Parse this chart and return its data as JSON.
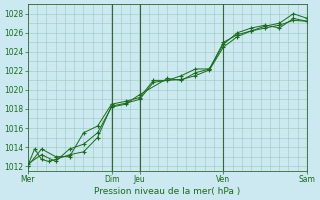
{
  "title": "",
  "xlabel": "Pression niveau de la mer( hPa )",
  "ylabel": "",
  "bg_color": "#cce8f0",
  "grid_color": "#99ccbb",
  "line_color": "#1a6b1a",
  "marker_color": "#1a6b1a",
  "ylim": [
    1011.5,
    1029.0
  ],
  "yticks": [
    1012,
    1014,
    1016,
    1018,
    1020,
    1022,
    1024,
    1026,
    1028
  ],
  "xtick_labels": [
    "Mer",
    "Dim",
    "Jeu",
    "Ven",
    "Sam"
  ],
  "xtick_positions": [
    0.0,
    3.0,
    4.0,
    7.0,
    10.0
  ],
  "vline_positions": [
    3.0,
    4.0,
    7.0,
    10.0
  ],
  "vline_color": "#336633",
  "series1_x": [
    0.0,
    0.25,
    0.5,
    0.75,
    1.0,
    1.5,
    2.0,
    2.5,
    3.0,
    3.5,
    4.0,
    4.5,
    5.0,
    5.5,
    6.0,
    6.5,
    7.0,
    7.5,
    8.0,
    8.5,
    9.0,
    9.5,
    10.0
  ],
  "series1_y": [
    1012.0,
    1013.8,
    1012.7,
    1012.5,
    1012.7,
    1013.2,
    1013.5,
    1015.0,
    1018.3,
    1018.6,
    1019.0,
    1020.8,
    1021.0,
    1021.1,
    1021.5,
    1022.1,
    1024.5,
    1025.6,
    1026.2,
    1026.7,
    1027.0,
    1028.0,
    1027.5
  ],
  "series2_x": [
    0.0,
    0.5,
    1.0,
    1.5,
    2.0,
    2.5,
    3.0,
    3.5,
    4.0,
    4.5,
    5.0,
    5.5,
    6.0,
    6.5,
    7.0,
    7.5,
    8.0,
    8.5,
    9.0,
    9.5,
    10.0
  ],
  "series2_y": [
    1012.0,
    1013.8,
    1013.0,
    1013.0,
    1015.5,
    1016.2,
    1018.5,
    1018.8,
    1019.2,
    1021.0,
    1021.0,
    1021.5,
    1022.2,
    1022.2,
    1024.8,
    1026.0,
    1026.5,
    1026.8,
    1026.5,
    1027.5,
    1027.2
  ],
  "series3_x": [
    0.0,
    0.5,
    1.0,
    1.5,
    2.0,
    2.5,
    3.0,
    3.5,
    4.0,
    5.0,
    5.5,
    6.0,
    6.5,
    7.0,
    7.5,
    8.0,
    8.5,
    9.0,
    9.5,
    10.0
  ],
  "series3_y": [
    1012.2,
    1013.2,
    1012.5,
    1013.8,
    1014.3,
    1015.5,
    1018.2,
    1018.5,
    1019.5,
    1021.2,
    1021.0,
    1021.8,
    1022.2,
    1025.0,
    1025.8,
    1026.2,
    1026.5,
    1026.8,
    1027.3,
    1027.2
  ]
}
